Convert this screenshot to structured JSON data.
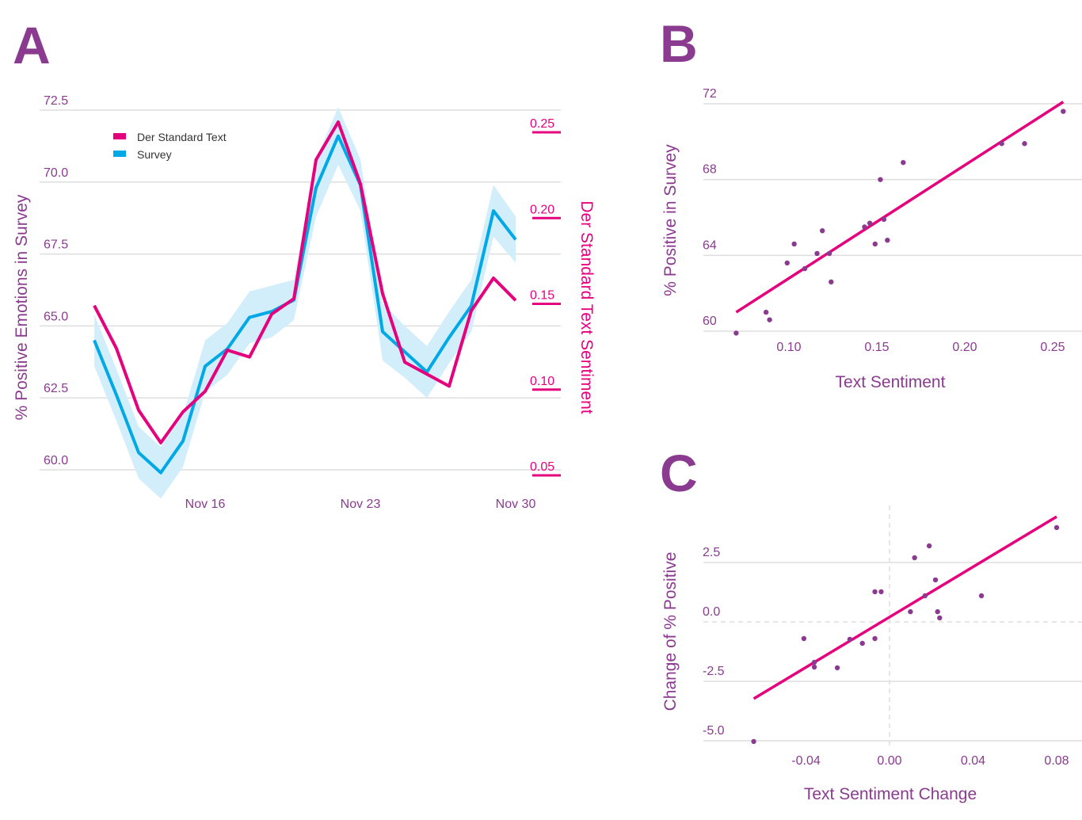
{
  "colors": {
    "text": "#e5007e",
    "survey": "#00a9e6",
    "band": "#d2eefb",
    "label": "#8a3b8f",
    "point": "#8a3b8f"
  },
  "chart_data": [
    {
      "panel": "A",
      "type": "line",
      "ylabel": "% Positive Emotions in Survey",
      "ylabel_right": "Der Standard Text Sentiment",
      "x": [
        "Nov 11",
        "Nov 12",
        "Nov 13",
        "Nov 14",
        "Nov 15",
        "Nov 16",
        "Nov 17",
        "Nov 18",
        "Nov 19",
        "Nov 20",
        "Nov 21",
        "Nov 22",
        "Nov 23",
        "Nov 24",
        "Nov 25",
        "Nov 26",
        "Nov 27",
        "Nov 28",
        "Nov 29",
        "Nov 30"
      ],
      "x_ticks": [
        "Nov 16",
        "Nov 23",
        "Nov 30"
      ],
      "ylim": [
        60.0,
        72.5
      ],
      "y_ticks": [
        "60.0",
        "62.5",
        "65.0",
        "67.5",
        "70.0",
        "72.5"
      ],
      "ylim_right": [
        0.05,
        0.25
      ],
      "y_ticks_right": [
        "0.05",
        "0.10",
        "0.15",
        "0.20",
        "0.25"
      ],
      "legend": {
        "placement": "top-left",
        "entries": [
          "Der Standard Text",
          "Survey"
        ]
      },
      "grid": true,
      "series": [
        {
          "name": "Der Standard Text",
          "axis": "right",
          "values": [
            0.149,
            0.124,
            0.088,
            0.069,
            0.087,
            0.099,
            0.123,
            0.119,
            0.144,
            0.153,
            0.234,
            0.256,
            0.22,
            0.156,
            0.116,
            0.109,
            0.102,
            0.146,
            0.165,
            0.152
          ]
        },
        {
          "name": "Survey",
          "axis": "left",
          "values": [
            64.5,
            62.6,
            60.6,
            59.9,
            61.0,
            63.6,
            64.2,
            65.3,
            65.5,
            65.9,
            69.8,
            71.6,
            69.9,
            64.8,
            64.1,
            63.4,
            64.6,
            65.7,
            69.0,
            68.0
          ],
          "ci_half_width": [
            0.9,
            0.9,
            0.9,
            0.9,
            0.9,
            0.9,
            0.9,
            0.9,
            0.9,
            0.7,
            1.0,
            1.0,
            0.9,
            1.0,
            0.9,
            0.9,
            0.9,
            0.9,
            0.9,
            0.8
          ]
        }
      ]
    },
    {
      "panel": "B",
      "type": "scatter",
      "xlabel": "Text Sentiment",
      "ylabel": "% Positive in Survey",
      "xlim": [
        0.07,
        0.26
      ],
      "x_ticks": [
        "0.10",
        "0.15",
        "0.20",
        "0.25"
      ],
      "ylim": [
        60,
        72
      ],
      "y_ticks": [
        "60",
        "64",
        "68",
        "72"
      ],
      "grid": true,
      "points": [
        [
          0.07,
          59.9
        ],
        [
          0.087,
          61.0
        ],
        [
          0.089,
          60.6
        ],
        [
          0.099,
          63.6
        ],
        [
          0.103,
          64.6
        ],
        [
          0.109,
          63.3
        ],
        [
          0.116,
          64.1
        ],
        [
          0.119,
          65.3
        ],
        [
          0.123,
          64.1
        ],
        [
          0.124,
          62.6
        ],
        [
          0.143,
          65.5
        ],
        [
          0.146,
          65.7
        ],
        [
          0.149,
          64.6
        ],
        [
          0.152,
          68.0
        ],
        [
          0.154,
          65.9
        ],
        [
          0.156,
          64.8
        ],
        [
          0.165,
          68.9
        ],
        [
          0.221,
          69.9
        ],
        [
          0.234,
          69.9
        ],
        [
          0.256,
          71.6
        ]
      ],
      "fit_line": [
        [
          0.07,
          61.0
        ],
        [
          0.256,
          72.1
        ]
      ]
    },
    {
      "panel": "C",
      "type": "scatter",
      "xlabel": "Text Sentiment Change",
      "ylabel": "Change of % Positive",
      "xlim": [
        -0.07,
        0.09
      ],
      "x_ticks": [
        "-0.04",
        "0.00",
        "0.04",
        "0.08"
      ],
      "ylim": [
        -5.0,
        4.5
      ],
      "y_ticks": [
        "-5.0",
        "-2.5",
        "0.0",
        "2.5"
      ],
      "grid": true,
      "points": [
        [
          -0.065,
          -5.03
        ],
        [
          -0.041,
          -0.7
        ],
        [
          -0.036,
          -1.7
        ],
        [
          -0.036,
          -1.9
        ],
        [
          -0.025,
          -1.93
        ],
        [
          -0.019,
          -0.73
        ],
        [
          -0.013,
          -0.9
        ],
        [
          -0.007,
          -0.7
        ],
        [
          -0.007,
          1.27
        ],
        [
          -0.004,
          1.27
        ],
        [
          0.01,
          0.43
        ],
        [
          0.012,
          2.7
        ],
        [
          0.017,
          1.1
        ],
        [
          0.019,
          3.2
        ],
        [
          0.022,
          1.77
        ],
        [
          0.023,
          0.43
        ],
        [
          0.024,
          0.17
        ],
        [
          0.044,
          1.1
        ],
        [
          0.08,
          3.97
        ]
      ],
      "fit_line": [
        [
          -0.065,
          -3.23
        ],
        [
          0.08,
          4.43
        ]
      ]
    }
  ],
  "panel_letters": [
    "A",
    "B",
    "C"
  ]
}
